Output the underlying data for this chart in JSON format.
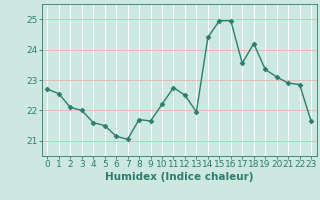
{
  "x": [
    0,
    1,
    2,
    3,
    4,
    5,
    6,
    7,
    8,
    9,
    10,
    11,
    12,
    13,
    14,
    15,
    16,
    17,
    18,
    19,
    20,
    21,
    22,
    23
  ],
  "y": [
    22.7,
    22.55,
    22.1,
    22.0,
    21.6,
    21.5,
    21.15,
    21.05,
    21.7,
    21.65,
    22.2,
    22.75,
    22.5,
    21.95,
    24.4,
    24.95,
    24.95,
    23.55,
    24.2,
    23.35,
    23.1,
    22.9,
    22.85,
    21.65
  ],
  "line_color": "#2e7d6e",
  "marker": "D",
  "marker_size": 2.5,
  "bg_color": "#cce8e0",
  "grid_color_h": "#e8b8b8",
  "grid_color_v": "#ffffff",
  "axis_color": "#2e7d6e",
  "tick_color": "#2e7d6e",
  "xlabel": "Humidex (Indice chaleur)",
  "ylim": [
    20.5,
    25.5
  ],
  "xlim": [
    -0.5,
    23.5
  ],
  "yticks": [
    21,
    22,
    23,
    24,
    25
  ],
  "xticks": [
    0,
    1,
    2,
    3,
    4,
    5,
    6,
    7,
    8,
    9,
    10,
    11,
    12,
    13,
    14,
    15,
    16,
    17,
    18,
    19,
    20,
    21,
    22,
    23
  ],
  "font_size": 6.5,
  "xlabel_fontsize": 7.5,
  "linewidth": 1.0
}
